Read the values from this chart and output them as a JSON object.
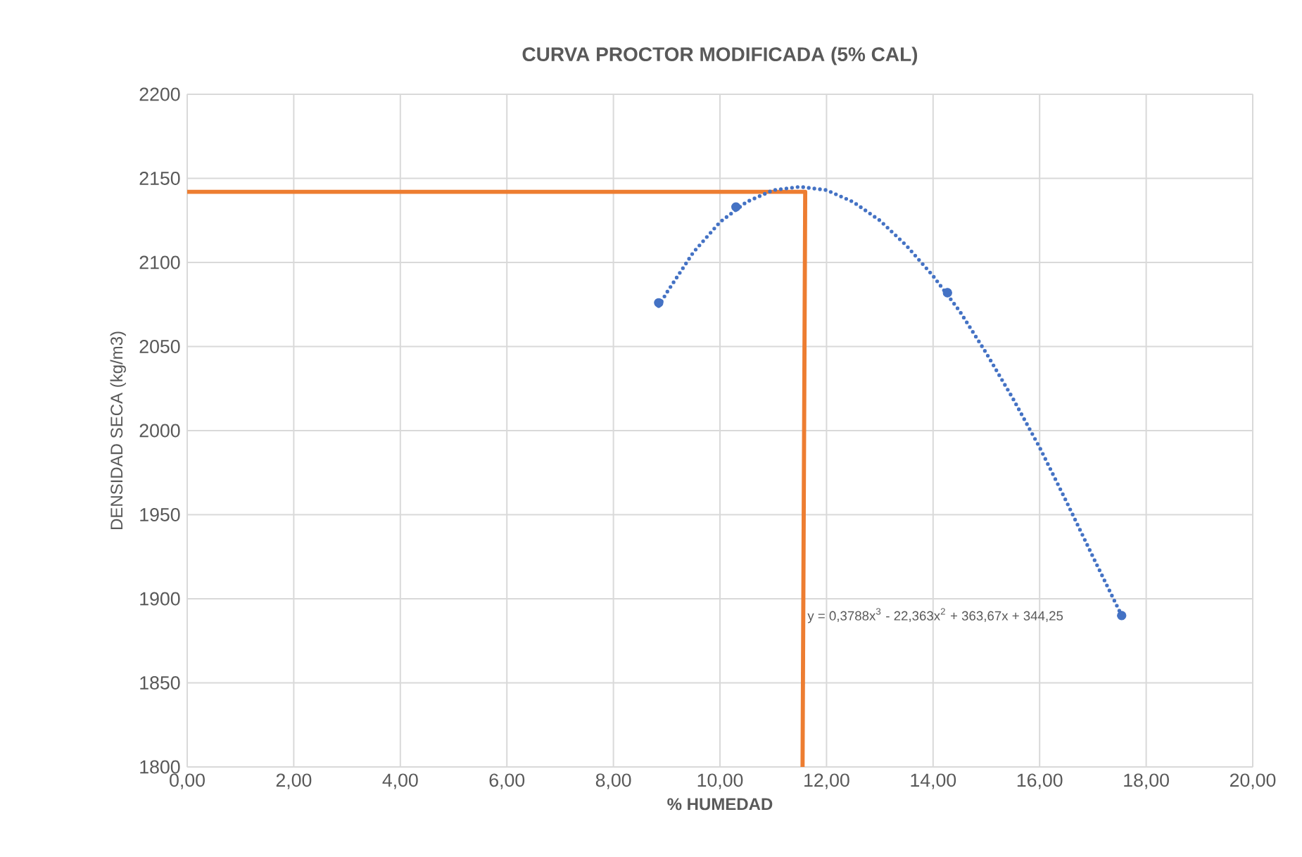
{
  "chart_data": {
    "type": "scatter",
    "title": "CURVA PROCTOR MODIFICADA (5% CAL)",
    "xlabel": "% HUMEDAD",
    "ylabel": "DENSIDAD SECA (kg/m3)",
    "xlim": [
      0,
      20
    ],
    "ylim": [
      1800,
      2200
    ],
    "xticks": [
      {
        "value": 0,
        "label": "0,00"
      },
      {
        "value": 2,
        "label": "2,00"
      },
      {
        "value": 4,
        "label": "4,00"
      },
      {
        "value": 6,
        "label": "6,00"
      },
      {
        "value": 8,
        "label": "8,00"
      },
      {
        "value": 10,
        "label": "10,00"
      },
      {
        "value": 12,
        "label": "12,00"
      },
      {
        "value": 14,
        "label": "14,00"
      },
      {
        "value": 16,
        "label": "16,00"
      },
      {
        "value": 18,
        "label": "18,00"
      },
      {
        "value": 20,
        "label": "20,00"
      }
    ],
    "yticks": [
      1800,
      1850,
      1900,
      1950,
      2000,
      2050,
      2100,
      2150,
      2200
    ],
    "grid": true,
    "series": [
      {
        "type": "line",
        "color": "#ed7d31",
        "marker": "none",
        "line_style": "solid",
        "x": [
          0,
          11.6,
          11.55
        ],
        "values": [
          2142,
          2142,
          1800
        ]
      },
      {
        "type": "line",
        "color": "#4472c4",
        "marker": "none",
        "line_style": "dotted",
        "x": [
          8.85,
          9,
          9.5,
          10,
          10.5,
          11,
          11.5,
          12,
          12.5,
          13,
          13.5,
          14,
          14.5,
          15,
          15.5,
          16,
          16.5,
          17,
          17.54
        ],
        "values": [
          2074,
          2082,
          2106,
          2124,
          2136,
          2143,
          2145,
          2143,
          2136,
          2125,
          2110,
          2092,
          2071,
          2046,
          2019,
          1990,
          1958,
          1925,
          1890
        ]
      },
      {
        "color": "#4472c4",
        "marker": "circle",
        "x": [
          8.85,
          10.3,
          14.27,
          17.54
        ],
        "values": [
          2076,
          2133,
          2082,
          1890
        ]
      }
    ],
    "annotations": [
      {
        "text": "y = 0,3788x$^{3}$ - 22,363x$^{2}$ + 363,67x + 344,25",
        "x": 11.6,
        "y": 1890
      }
    ]
  }
}
